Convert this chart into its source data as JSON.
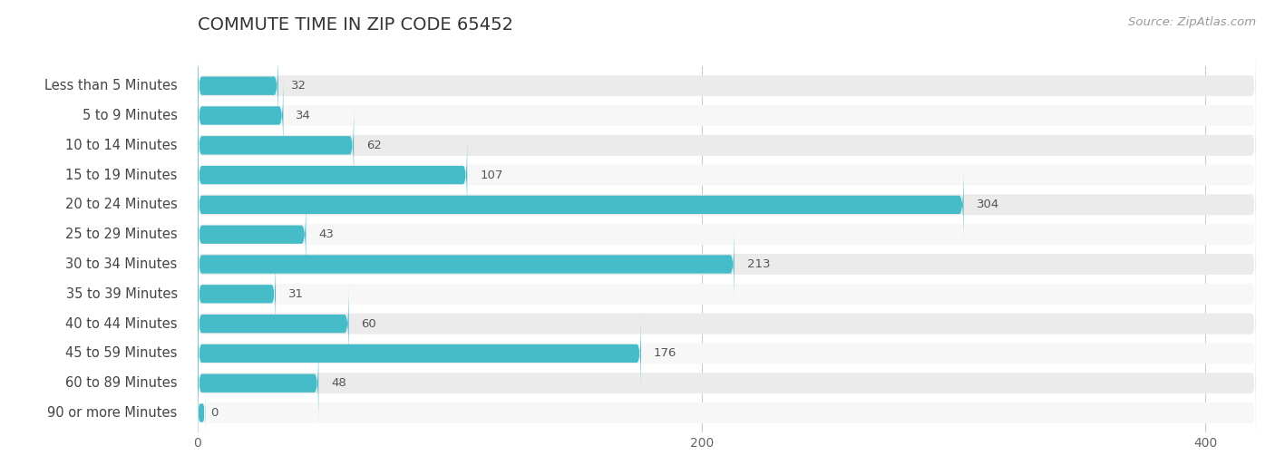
{
  "title": "Commute Time in Zip Code 65452",
  "title_display": "COMMUTE TIME IN ZIP CODE 65452",
  "source": "Source: ZipAtlas.com",
  "categories": [
    "Less than 5 Minutes",
    "5 to 9 Minutes",
    "10 to 14 Minutes",
    "15 to 19 Minutes",
    "20 to 24 Minutes",
    "25 to 29 Minutes",
    "30 to 34 Minutes",
    "35 to 39 Minutes",
    "40 to 44 Minutes",
    "45 to 59 Minutes",
    "60 to 89 Minutes",
    "90 or more Minutes"
  ],
  "values": [
    32,
    34,
    62,
    107,
    304,
    43,
    213,
    31,
    60,
    176,
    48,
    0
  ],
  "bar_color": "#45bcc8",
  "row_bg_even": "#ebebeb",
  "row_bg_odd": "#f7f7f7",
  "title_color": "#333333",
  "label_color": "#444444",
  "value_color_inside": "#ffffff",
  "value_color_outside": "#555555",
  "source_color": "#999999",
  "max_val": 420,
  "xticks": [
    0,
    200,
    400
  ],
  "title_fontsize": 14,
  "label_fontsize": 10.5,
  "value_fontsize": 9.5,
  "source_fontsize": 9.5,
  "tick_fontsize": 10
}
